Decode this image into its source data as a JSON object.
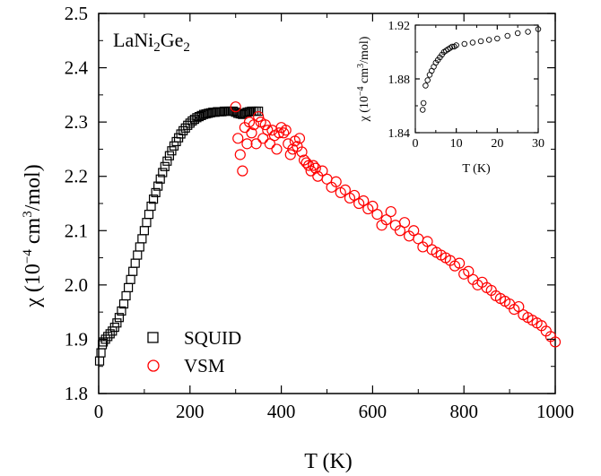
{
  "chart_data": [
    {
      "type": "scatter",
      "role": "main",
      "title": "",
      "annotation": {
        "base": "LaNi",
        "sub1": "2",
        "mid": "Ge",
        "sub2": "2"
      },
      "xlabel": "T (K)",
      "ylabel": {
        "pre": "χ (10",
        "sup1": "−4",
        "mid": " cm",
        "sup2": "3",
        "post": "/mol)"
      },
      "xlim": [
        0,
        1000
      ],
      "ylim": [
        1.8,
        2.5
      ],
      "xticks": [
        "0",
        "200",
        "400",
        "600",
        "800",
        "1000"
      ],
      "yticks": [
        "1.8",
        "1.9",
        "2.0",
        "2.1",
        "2.2",
        "2.3",
        "2.4",
        "2.5"
      ],
      "grid": false,
      "legend_position": "bottom-left",
      "series": [
        {
          "name": "SQUID",
          "marker": "square",
          "color": "#000000",
          "x": [
            2,
            5,
            8,
            10,
            15,
            20,
            25,
            30,
            35,
            40,
            45,
            50,
            55,
            60,
            65,
            70,
            75,
            80,
            85,
            90,
            95,
            100,
            105,
            110,
            115,
            120,
            125,
            130,
            135,
            140,
            145,
            150,
            155,
            160,
            165,
            170,
            175,
            180,
            185,
            190,
            195,
            200,
            205,
            210,
            215,
            220,
            225,
            230,
            235,
            240,
            245,
            250,
            255,
            260,
            265,
            270,
            275,
            280,
            285,
            290,
            295,
            300,
            305,
            310,
            315,
            320,
            325,
            330,
            335,
            340,
            345,
            350
          ],
          "y": [
            1.86,
            1.875,
            1.89,
            1.895,
            1.9,
            1.905,
            1.91,
            1.915,
            1.922,
            1.93,
            1.94,
            1.952,
            1.965,
            1.98,
            1.995,
            2.01,
            2.025,
            2.04,
            2.055,
            2.07,
            2.085,
            2.1,
            2.115,
            2.13,
            2.145,
            2.158,
            2.17,
            2.182,
            2.195,
            2.207,
            2.218,
            2.228,
            2.238,
            2.247,
            2.256,
            2.264,
            2.271,
            2.278,
            2.284,
            2.289,
            2.294,
            2.298,
            2.302,
            2.305,
            2.308,
            2.31,
            2.312,
            2.314,
            2.315,
            2.316,
            2.317,
            2.318,
            2.318,
            2.319,
            2.319,
            2.319,
            2.32,
            2.32,
            2.32,
            2.32,
            2.32,
            2.318,
            2.316,
            2.315,
            2.314,
            2.316,
            2.318,
            2.319,
            2.32,
            2.32,
            2.32,
            2.32
          ]
        },
        {
          "name": "VSM",
          "marker": "circle",
          "color": "#ff0000",
          "x": [
            300,
            305,
            310,
            315,
            320,
            325,
            330,
            335,
            340,
            345,
            350,
            355,
            360,
            365,
            370,
            375,
            380,
            385,
            390,
            395,
            400,
            405,
            410,
            415,
            420,
            425,
            430,
            435,
            440,
            445,
            450,
            455,
            460,
            465,
            470,
            475,
            480,
            490,
            500,
            510,
            520,
            530,
            540,
            550,
            560,
            570,
            580,
            590,
            600,
            610,
            620,
            630,
            640,
            650,
            660,
            670,
            680,
            690,
            700,
            710,
            720,
            730,
            740,
            750,
            760,
            770,
            780,
            790,
            800,
            810,
            820,
            830,
            840,
            850,
            860,
            870,
            880,
            890,
            900,
            910,
            920,
            930,
            940,
            950,
            960,
            970,
            980,
            990,
            1000
          ],
          "y": [
            2.328,
            2.27,
            2.24,
            2.21,
            2.29,
            2.26,
            2.3,
            2.28,
            2.295,
            2.26,
            2.31,
            2.3,
            2.27,
            2.295,
            2.285,
            2.26,
            2.285,
            2.275,
            2.25,
            2.28,
            2.29,
            2.28,
            2.285,
            2.26,
            2.24,
            2.25,
            2.265,
            2.255,
            2.27,
            2.245,
            2.23,
            2.225,
            2.22,
            2.21,
            2.22,
            2.215,
            2.2,
            2.21,
            2.195,
            2.18,
            2.19,
            2.17,
            2.175,
            2.16,
            2.165,
            2.15,
            2.155,
            2.14,
            2.145,
            2.13,
            2.11,
            2.12,
            2.135,
            2.11,
            2.1,
            2.115,
            2.09,
            2.1,
            2.085,
            2.07,
            2.08,
            2.065,
            2.06,
            2.055,
            2.05,
            2.045,
            2.035,
            2.04,
            2.02,
            2.025,
            2.01,
            2.0,
            2.005,
            1.995,
            1.99,
            1.98,
            1.975,
            1.97,
            1.965,
            1.955,
            1.96,
            1.945,
            1.94,
            1.935,
            1.93,
            1.925,
            1.915,
            1.905,
            1.895
          ]
        }
      ]
    },
    {
      "type": "scatter",
      "role": "inset",
      "title": "",
      "xlabel": "T (K)",
      "ylabel": {
        "pre": "χ (10",
        "sup1": "−4",
        "mid": " cm",
        "sup2": "3",
        "post": "/mol)"
      },
      "xlim": [
        0,
        30
      ],
      "ylim": [
        1.84,
        1.92
      ],
      "xticks": [
        "0",
        "10",
        "20",
        "30"
      ],
      "yticks": [
        "1.84",
        "1.88",
        "1.92"
      ],
      "grid": false,
      "series": [
        {
          "name": "SQUID",
          "marker": "circle",
          "color": "#000000",
          "x": [
            1.8,
            2.0,
            2.5,
            3.0,
            3.5,
            4.0,
            4.5,
            5.0,
            5.5,
            6.0,
            6.5,
            7.0,
            7.5,
            8.0,
            8.5,
            9.0,
            9.5,
            10,
            12,
            14,
            16,
            18,
            20,
            22.5,
            25,
            27.5,
            30
          ],
          "y": [
            1.857,
            1.862,
            1.875,
            1.879,
            1.883,
            1.886,
            1.889,
            1.892,
            1.894,
            1.896,
            1.898,
            1.9,
            1.901,
            1.902,
            1.903,
            1.904,
            1.904,
            1.905,
            1.906,
            1.907,
            1.908,
            1.909,
            1.91,
            1.912,
            1.914,
            1.915,
            1.917
          ]
        }
      ]
    }
  ]
}
